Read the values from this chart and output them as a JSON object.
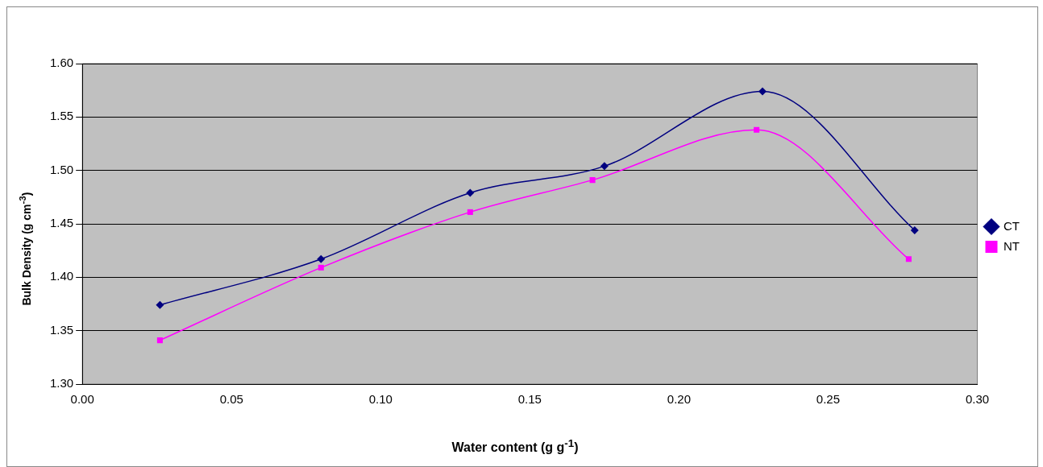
{
  "chart_data": {
    "type": "line",
    "xlabel": "Water content (g g$^{-1}$)",
    "ylabel": "Bulk Density (g cm$^{-3}$)",
    "series": [
      {
        "name": "CT",
        "color": "#000080",
        "marker": "diamond",
        "x": [
          0.026,
          0.08,
          0.13,
          0.175,
          0.228,
          0.279
        ],
        "values": [
          1.374,
          1.417,
          1.479,
          1.504,
          1.574,
          1.444
        ]
      },
      {
        "name": "NT",
        "color": "#ff00ff",
        "marker": "square",
        "x": [
          0.026,
          0.08,
          0.13,
          0.171,
          0.226,
          0.277
        ],
        "values": [
          1.341,
          1.409,
          1.461,
          1.491,
          1.538,
          1.417
        ]
      }
    ],
    "xlim": [
      0,
      0.3
    ],
    "xticks": [
      {
        "value": 0,
        "label": "0.00"
      },
      {
        "value": 0.05,
        "label": "0.05"
      },
      {
        "value": 0.1,
        "label": "0.10"
      },
      {
        "value": 0.15,
        "label": "0.15"
      },
      {
        "value": 0.2,
        "label": "0.20"
      },
      {
        "value": 0.25,
        "label": "0.25"
      },
      {
        "value": 0.3,
        "label": "0.30"
      }
    ],
    "ylim": [
      1.3,
      1.6
    ],
    "yticks": [
      {
        "value": 1.3,
        "label": "1.30"
      },
      {
        "value": 1.35,
        "label": "1.35"
      },
      {
        "value": 1.4,
        "label": "1.40"
      },
      {
        "value": 1.45,
        "label": "1.45"
      },
      {
        "value": 1.5,
        "label": "1.50"
      },
      {
        "value": 1.55,
        "label": "1.55"
      },
      {
        "value": 1.6,
        "label": "1.60"
      }
    ],
    "grid": "y",
    "legend": "right",
    "line_style": "solid"
  }
}
